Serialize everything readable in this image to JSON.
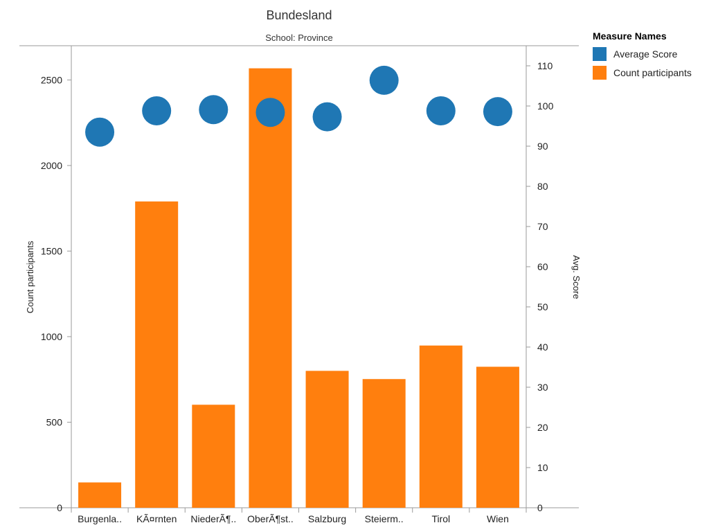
{
  "chart_data": {
    "type": "bar",
    "title": "Bundesland",
    "subtitle": "School: Province",
    "categories": [
      "Burgenla..",
      "KÃ¤rnten",
      "NiederÃ¶..",
      "OberÃ¶st..",
      "Salzburg",
      "Steierm..",
      "Tirol",
      "Wien"
    ],
    "series": [
      {
        "name": "Count participants",
        "type": "bar",
        "axis": "left",
        "color": "#ff7f0e",
        "values": [
          148,
          1790,
          602,
          2568,
          800,
          752,
          948,
          824
        ]
      },
      {
        "name": "Average Score",
        "type": "scatter",
        "axis": "right",
        "color": "#1f77b4",
        "values": [
          93.5,
          98.8,
          99.1,
          98.4,
          97.3,
          106.4,
          98.8,
          98.6
        ]
      }
    ],
    "ylabel_left": "Count participants",
    "ylabel_right": "Avg. Score",
    "ylim_left": [
      0,
      2700
    ],
    "ylim_right": [
      0,
      115
    ],
    "yticks_left": [
      0,
      500,
      1000,
      1500,
      2000,
      2500
    ],
    "yticks_right": [
      0,
      10,
      20,
      30,
      40,
      50,
      60,
      70,
      80,
      90,
      100,
      110
    ],
    "grid": false
  },
  "legend": {
    "title": "Measure Names",
    "items": [
      {
        "label": "Average Score",
        "color": "#1f77b4"
      },
      {
        "label": "Count participants",
        "color": "#ff7f0e"
      }
    ]
  }
}
